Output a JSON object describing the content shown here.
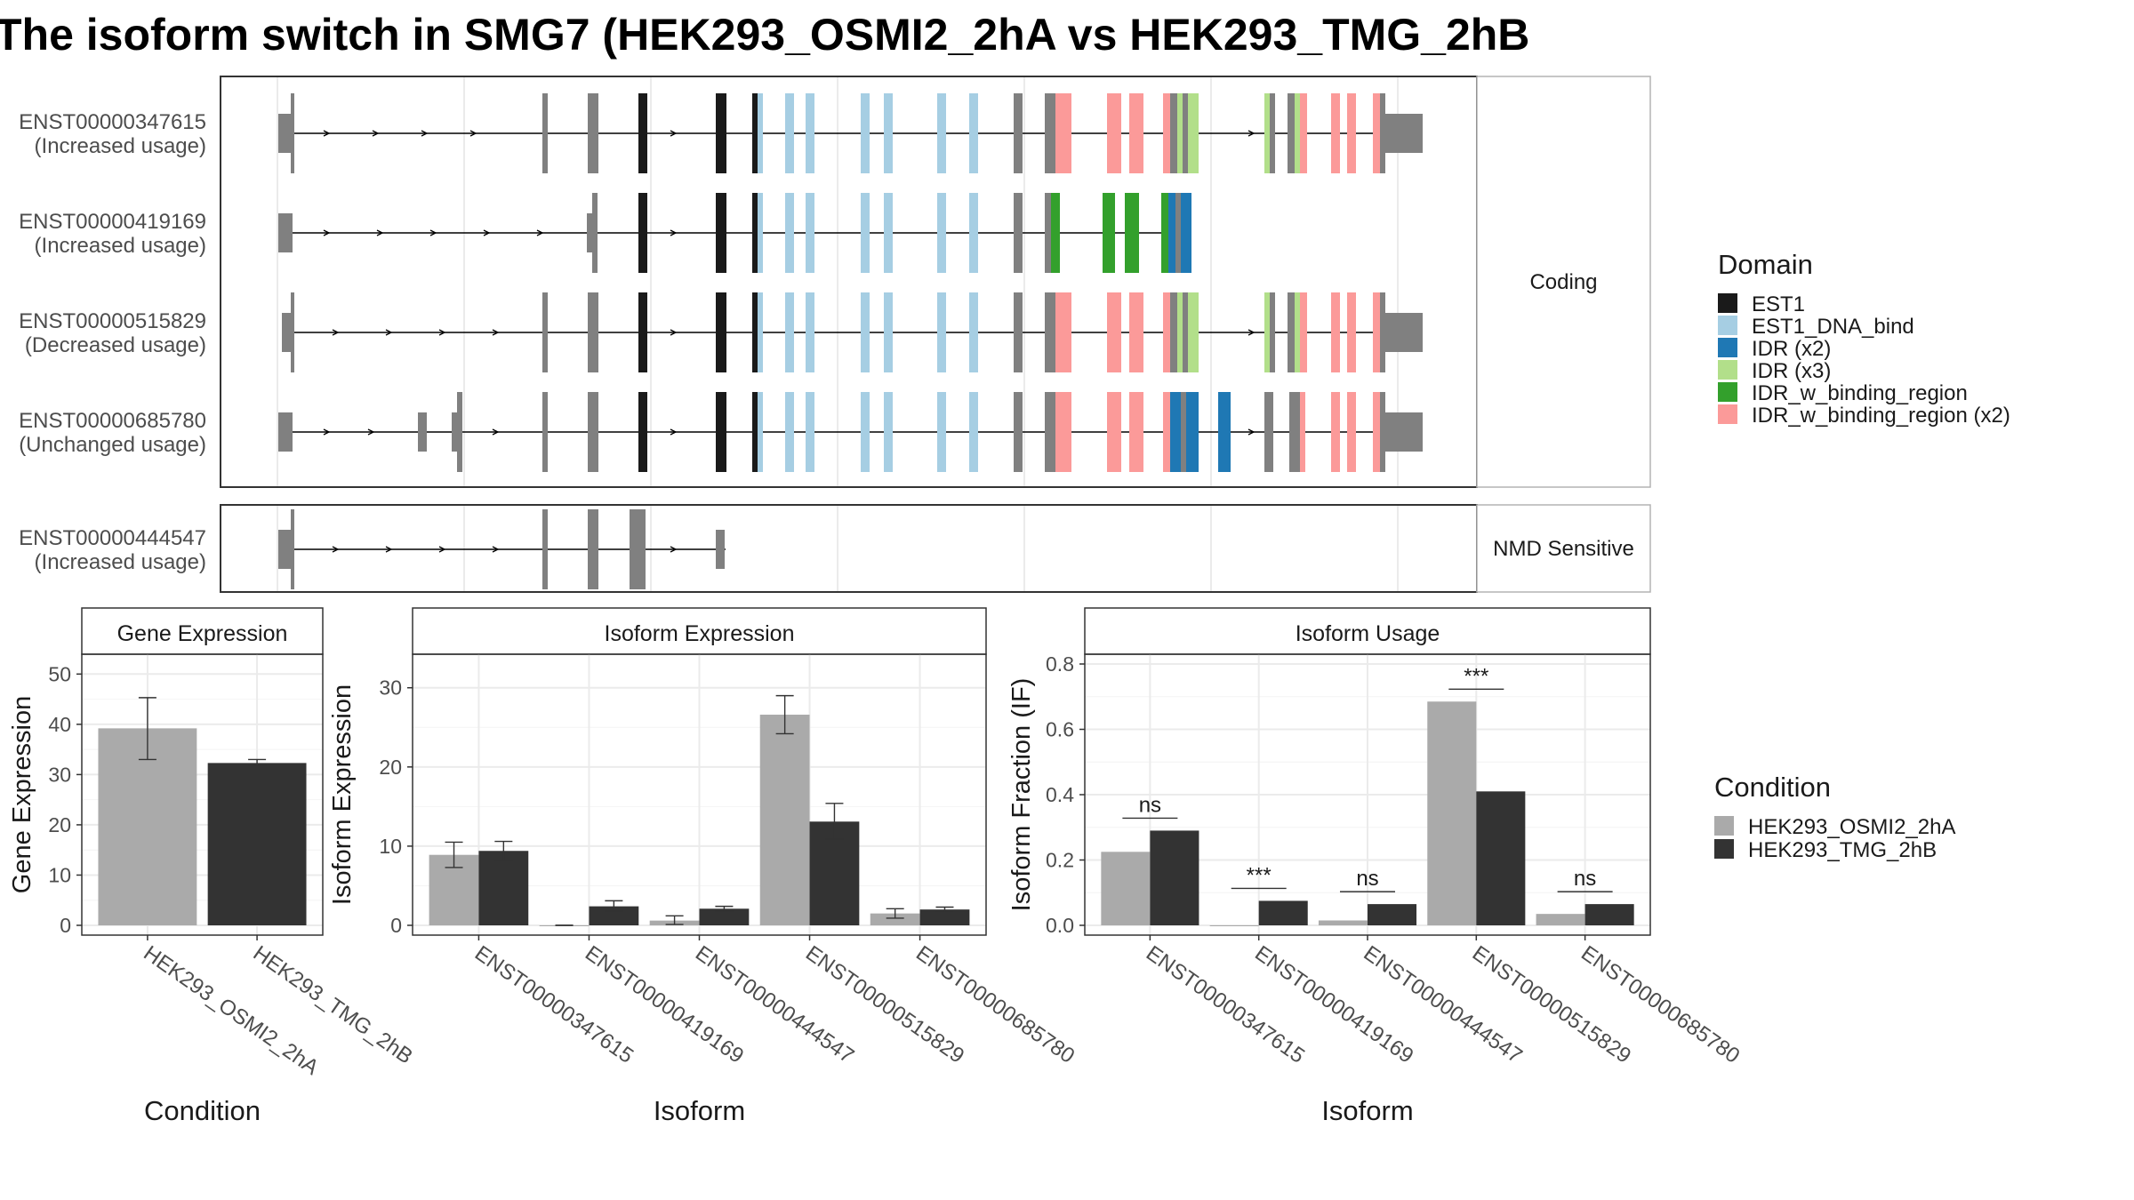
{
  "title": "The isoform switch in SMG7 (HEK293_OSMI2_2hA vs HEK293_TMG_2hB",
  "colors": {
    "intron": "#000000",
    "utr_exon": "#808080",
    "panel_border": "#333333",
    "strip_border": "#b3b3b3",
    "grid": "#ebebeb",
    "cond_a": "#aaaaaa",
    "cond_b": "#333333"
  },
  "structure": {
    "groups": [
      {
        "label": "Coding",
        "transcripts": [
          {
            "id": "ENST00000347615",
            "usage": "(Increased usage)"
          },
          {
            "id": "ENST00000419169",
            "usage": "(Increased usage)"
          },
          {
            "id": "ENST00000515829",
            "usage": "(Decreased usage)"
          },
          {
            "id": "ENST00000685780",
            "usage": "(Unchanged usage)"
          }
        ]
      },
      {
        "label": "NMD Sensitive",
        "transcripts": [
          {
            "id": "ENST00000444547",
            "usage": "(Increased usage)"
          }
        ]
      }
    ]
  },
  "domain_legend": {
    "title": "Domain",
    "items": [
      {
        "label": "EST1",
        "color": "#1a1a1a"
      },
      {
        "label": "EST1_DNA_bind",
        "color": "#a6cee3"
      },
      {
        "label": "IDR (x2)",
        "color": "#1f78b4"
      },
      {
        "label": "IDR (x3)",
        "color": "#b2df8a"
      },
      {
        "label": "IDR_w_binding_region",
        "color": "#33a02c"
      },
      {
        "label": "IDR_w_binding_region (x2)",
        "color": "#fb9a99"
      }
    ]
  },
  "condition_legend": {
    "title": "Condition",
    "items": [
      {
        "label": "HEK293_OSMI2_2hA",
        "color": "#aaaaaa"
      },
      {
        "label": "HEK293_TMG_2hB",
        "color": "#333333"
      }
    ]
  },
  "chart_data": [
    {
      "type": "bar",
      "title": "Gene Expression",
      "xlabel": "Condition",
      "ylabel": "Gene Expression",
      "ylim": [
        0,
        52
      ],
      "yticks": [
        0,
        10,
        20,
        30,
        40,
        50
      ],
      "categories": [
        "HEK293_OSMI2_2hA",
        "HEK293_TMG_2hB"
      ],
      "values": [
        39.2,
        32.3
      ],
      "err_low": [
        33.0,
        31.8
      ],
      "err_high": [
        45.3,
        33.0
      ]
    },
    {
      "type": "bar",
      "title": "Isoform Expression",
      "xlabel": "Isoform",
      "ylabel": "Isoform Expression",
      "ylim": [
        0,
        33
      ],
      "yticks": [
        0,
        10,
        20,
        30
      ],
      "categories": [
        "ENST00000347615",
        "ENST00000419169",
        "ENST00000444547",
        "ENST00000515829",
        "ENST00000685780"
      ],
      "series": [
        {
          "name": "HEK293_OSMI2_2hA",
          "values": [
            8.9,
            0.0,
            0.6,
            26.6,
            1.5
          ],
          "err_low": [
            7.3,
            0.0,
            0.1,
            24.2,
            0.9
          ],
          "err_high": [
            10.5,
            0.0,
            1.2,
            29.0,
            2.1
          ]
        },
        {
          "name": "HEK293_TMG_2hB",
          "values": [
            9.4,
            2.4,
            2.1,
            13.1,
            2.0
          ],
          "err_low": [
            8.2,
            1.8,
            1.8,
            10.9,
            1.7
          ],
          "err_high": [
            10.6,
            3.1,
            2.4,
            15.4,
            2.3
          ]
        }
      ]
    },
    {
      "type": "bar",
      "title": "Isoform Usage",
      "xlabel": "Isoform",
      "ylabel": "Isoform Fraction (IF)",
      "ylim": [
        0,
        0.8
      ],
      "yticks": [
        0.0,
        0.2,
        0.4,
        0.6,
        0.8
      ],
      "categories": [
        "ENST00000347615",
        "ENST00000419169",
        "ENST00000444547",
        "ENST00000515829",
        "ENST00000685780"
      ],
      "series": [
        {
          "name": "HEK293_OSMI2_2hA",
          "values": [
            0.225,
            0.0,
            0.015,
            0.685,
            0.035
          ]
        },
        {
          "name": "HEK293_TMG_2hB",
          "values": [
            0.29,
            0.075,
            0.065,
            0.41,
            0.065
          ]
        }
      ],
      "significance": [
        "ns",
        "***",
        "ns",
        "***",
        "ns"
      ]
    }
  ]
}
